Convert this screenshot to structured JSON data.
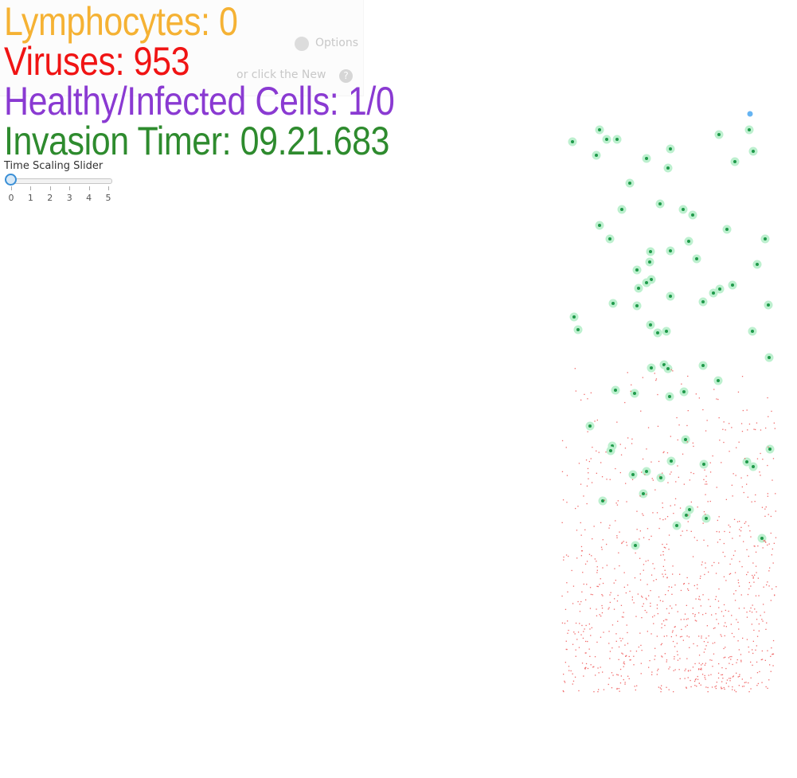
{
  "hud": {
    "lymphocytes": "Lymphocytes: 0",
    "viruses": "Viruses: 953",
    "cells": "Healthy/Infected Cells: 1/0",
    "timer": "Invasion Timer: 09.21.683"
  },
  "colors": {
    "lymphocytes": "#f5b234",
    "viruses": "#f01414",
    "cells": "#8a3ad2",
    "timer": "#2e8b2e",
    "cell_halo": "#bdf0cf",
    "cell_core": "#1f9a4a",
    "virus_dot": "#f06a6a",
    "player_dot": "#66b4f2"
  },
  "slider": {
    "label": "Time Scaling Slider",
    "ticks": [
      "0",
      "1",
      "2",
      "3",
      "4",
      "5"
    ],
    "value": 0
  },
  "background_overlay": {
    "line1": "Options",
    "line2": "or click the New",
    "help": "?"
  },
  "simulation": {
    "virus_count": 953,
    "healthy_cells": 1,
    "infected_cells": 0,
    "lymphocyte_count": 0
  }
}
